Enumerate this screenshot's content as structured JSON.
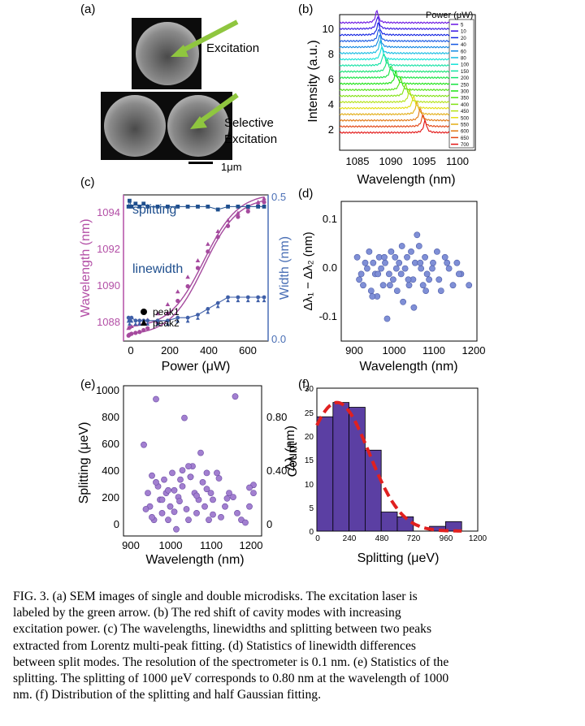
{
  "panel_labels": {
    "a": "(a)",
    "b": "(b)",
    "c": "(c)",
    "d": "(d)",
    "e": "(e)",
    "f": "(f)"
  },
  "panel_a": {
    "excitation_label": "Excitation",
    "selective_label_1": "Selective",
    "selective_label_2": "Excitation",
    "scale_label": "1μm",
    "arrow_color": "#8fc63f"
  },
  "panel_b": {
    "ylabel": "Intensity (a.u.)",
    "xlabel": "Wavelength (nm)",
    "legend_title": "Power (μW)",
    "xticks": [
      "1085",
      "1090",
      "1095",
      "1100"
    ],
    "yticks": [
      "2",
      "4",
      "6",
      "8",
      "10"
    ]
  },
  "panel_c": {
    "ylabel_left": "Wavelength (nm)",
    "ylabel_right": "Width (nm)",
    "xlabel": "Power (μW)",
    "splitting_label": "splitting",
    "linewidth_label": "linewidth",
    "legend_peak1": "peak1",
    "legend_peak2": "peak2",
    "xticks": [
      "0",
      "200",
      "400",
      "600"
    ],
    "yticks_left": [
      "1088",
      "1090",
      "1092",
      "1094"
    ],
    "yticks_right": [
      "0.0",
      "0.5"
    ]
  },
  "panel_d": {
    "ylabel": "Δλ₁ − Δλ₂ (nm)",
    "xlabel": "Wavelength (nm)",
    "xticks": [
      "900",
      "1000",
      "1100",
      "1200"
    ],
    "yticks": [
      "0.1",
      "0.0",
      "-0.1"
    ]
  },
  "panel_e": {
    "ylabel_left": "Splitting (μeV)",
    "ylabel_right": "Δλ (nm)",
    "xlabel": "Wavelength (nm)",
    "xticks": [
      "900",
      "1000",
      "1100",
      "1200"
    ],
    "yticks_left": [
      "0",
      "200",
      "400",
      "600",
      "800",
      "1000"
    ],
    "yticks_right": [
      "0",
      "0.40",
      "0.80"
    ]
  },
  "panel_f": {
    "ylabel": "Count",
    "xlabel": "Splitting (μeV)",
    "xticks": [
      "0",
      "240",
      "480",
      "720",
      "960",
      "1200"
    ],
    "yticks": [
      "0",
      "5",
      "10",
      "15",
      "20",
      "25",
      "30"
    ]
  },
  "caption": {
    "line1": "FIG. 3. (a) SEM images of single and double microdisks. The excitation laser is",
    "line2": "labeled by the green arrow. (b) The red shift of cavity modes with increasing",
    "line3": "excitation power. (c) The wavelengths, linewidths and splitting between two peaks",
    "line4": "extracted from Lorentz multi-peak fitting. (d) Statistics of linewidth differences",
    "line5": "between split modes. The resolution of the spectrometer is 0.1 nm. (e) Statistics of the",
    "line6": "splitting. The splitting of 1000 μeV corresponds to 0.80 nm at the wavelength of 1000",
    "line7": "nm. (f) Distribution of the splitting and half Gaussian fitting."
  },
  "chart_data": [
    {
      "panel": "b",
      "type": "line",
      "xlabel": "Wavelength (nm)",
      "ylabel": "Intensity (a.u.)",
      "xlim": [
        1082,
        1102
      ],
      "ylim": [
        1,
        11
      ],
      "legend_title": "Power (μW)",
      "series_names": [
        "5",
        "10",
        "20",
        "40",
        "60",
        "80",
        "100",
        "150",
        "200",
        "250",
        "300",
        "350",
        "400",
        "450",
        "500",
        "550",
        "600",
        "650",
        "700"
      ],
      "peak_wavelengths": [
        1087.5,
        1087.6,
        1087.7,
        1087.8,
        1087.9,
        1088.0,
        1088.2,
        1088.5,
        1089.0,
        1089.6,
        1090.3,
        1091.0,
        1091.7,
        1092.3,
        1092.9,
        1093.4,
        1093.9,
        1094.3,
        1094.6
      ],
      "baselines": [
        10.4,
        9.95,
        9.5,
        9.05,
        8.6,
        8.15,
        7.7,
        7.25,
        6.8,
        6.35,
        5.9,
        5.45,
        5.0,
        4.55,
        4.1,
        3.65,
        3.2,
        2.75,
        2.3
      ]
    },
    {
      "panel": "c",
      "type": "scatter",
      "xlabel": "Power (μW)",
      "ylabel": "Wavelength (nm)",
      "xlim": [
        -20,
        700
      ],
      "ylim": [
        1087,
        1095
      ],
      "x": [
        5,
        10,
        20,
        40,
        60,
        80,
        100,
        150,
        200,
        250,
        300,
        350,
        400,
        450,
        500,
        550,
        600,
        650,
        680
      ],
      "series": [
        {
          "name": "peak1",
          "values": [
            1087.3,
            1087.35,
            1087.4,
            1087.45,
            1087.5,
            1087.6,
            1087.7,
            1088.0,
            1088.5,
            1089.2,
            1090.0,
            1091.0,
            1091.9,
            1092.7,
            1093.3,
            1093.8,
            1094.1,
            1094.4,
            1094.6
          ]
        },
        {
          "name": "peak2",
          "values": [
            1087.7,
            1087.75,
            1087.8,
            1087.9,
            1087.95,
            1088.0,
            1088.15,
            1088.5,
            1089.0,
            1089.7,
            1090.5,
            1091.4,
            1092.3,
            1093.0,
            1093.6,
            1094.0,
            1094.3,
            1094.6,
            1094.8
          ]
        }
      ],
      "splitting_width_nm": [
        0.46,
        0.48,
        0.46,
        0.47,
        0.46,
        0.47,
        0.46,
        0.46,
        0.46,
        0.46,
        0.46,
        0.46,
        0.46,
        0.45,
        0.46,
        0.46,
        0.46,
        0.46,
        0.46
      ],
      "linewidth_width_nm": [
        0.08,
        0.07,
        0.08,
        0.07,
        0.07,
        0.07,
        0.07,
        0.07,
        0.07,
        0.08,
        0.08,
        0.09,
        0.11,
        0.13,
        0.15,
        0.15,
        0.15,
        0.15,
        0.15
      ]
    },
    {
      "panel": "d",
      "type": "scatter",
      "xlabel": "Wavelength (nm)",
      "xlim": [
        880,
        1220
      ],
      "ylim": [
        -0.12,
        0.13
      ],
      "x": [
        920,
        930,
        935,
        945,
        950,
        955,
        960,
        965,
        970,
        975,
        980,
        985,
        990,
        995,
        1000,
        1005,
        1010,
        1015,
        1020,
        1025,
        1030,
        1035,
        1040,
        1045,
        1050,
        1055,
        1060,
        1065,
        1070,
        1075,
        1080,
        1085,
        1090,
        1095,
        1100,
        1110,
        1120,
        1130,
        1140,
        1150,
        1160,
        1170,
        1180,
        1200,
        925,
        940,
        958,
        972,
        988,
        1002,
        1018,
        1032,
        1048,
        1062,
        1078,
        1092,
        1108,
        1125,
        1145,
        1175
      ],
      "y": [
        0.03,
        0.0,
        -0.02,
        0.01,
        0.04,
        -0.03,
        0.02,
        0.0,
        -0.04,
        0.03,
        0.01,
        -0.02,
        0.02,
        -0.08,
        0.0,
        0.04,
        -0.01,
        0.03,
        -0.03,
        0.02,
        0.0,
        -0.05,
        0.01,
        0.03,
        -0.02,
        0.04,
        -0.01,
        0.02,
        0.07,
        0.05,
        0.01,
        -0.02,
        0.03,
        0.0,
        -0.01,
        0.02,
        0.04,
        -0.03,
        0.03,
        0.01,
        -0.02,
        0.02,
        0.0,
        -0.02,
        -0.01,
        0.02,
        -0.04,
        0.0,
        0.03,
        -0.02,
        0.01,
        0.05,
        -0.01,
        -0.06,
        0.02,
        -0.03,
        0.01,
        -0.01,
        0.02,
        0.0
      ]
    },
    {
      "panel": "e",
      "type": "scatter",
      "xlabel": "Wavelength (nm)",
      "ylabel": "Splitting (μeV)",
      "xlim": [
        880,
        1220
      ],
      "ylim": [
        -20,
        1100
      ],
      "x": [
        930,
        940,
        945,
        950,
        955,
        960,
        965,
        970,
        975,
        980,
        985,
        990,
        995,
        1000,
        1005,
        1010,
        1015,
        1020,
        1025,
        1030,
        1035,
        1040,
        1045,
        1050,
        1055,
        1060,
        1065,
        1070,
        1075,
        1080,
        1085,
        1090,
        1095,
        1100,
        1110,
        1120,
        1130,
        1140,
        1150,
        1160,
        1170,
        1180,
        1190,
        1200,
        1155,
        960,
        1025,
        1040,
        1200,
        1190,
        935,
        950,
        975,
        990,
        1005,
        1018,
        1045,
        1060,
        1085,
        1100,
        1115,
        1135
      ],
      "y": [
        660,
        300,
        200,
        430,
        100,
        1000,
        350,
        250,
        150,
        400,
        300,
        100,
        200,
        450,
        320,
        30,
        270,
        400,
        350,
        860,
        180,
        100,
        420,
        500,
        300,
        150,
        250,
        600,
        380,
        200,
        450,
        100,
        300,
        250,
        450,
        120,
        200,
        300,
        270,
        150,
        100,
        80,
        200,
        300,
        1020,
        380,
        470,
        500,
        360,
        340,
        180,
        120,
        250,
        320,
        160,
        240,
        420,
        280,
        330,
        140,
        410,
        260
      ]
    },
    {
      "panel": "f",
      "type": "bar",
      "xlabel": "Splitting (μeV)",
      "ylabel": "Count",
      "xlim": [
        0,
        1200
      ],
      "ylim": [
        0,
        30
      ],
      "bin_edges": [
        0,
        120,
        240,
        360,
        480,
        600,
        720,
        840,
        960,
        1080
      ],
      "values": [
        24,
        27,
        26,
        17,
        4,
        3,
        0,
        1,
        2
      ],
      "fit": {
        "type": "half gaussian",
        "peak": 27,
        "center": 150,
        "sigma": 240
      }
    }
  ]
}
